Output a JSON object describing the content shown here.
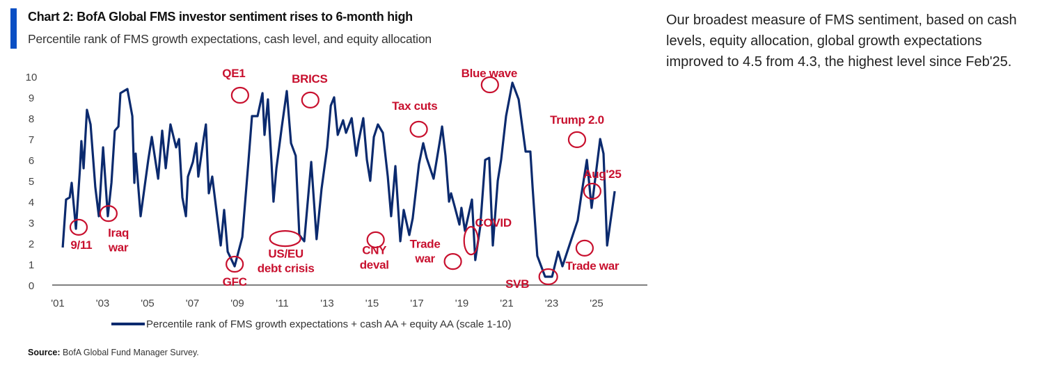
{
  "header": {
    "title": "Chart 2: BofA Global FMS investor sentiment rises to 6-month high",
    "subtitle": "Percentile rank of FMS growth expectations, cash level, and equity allocation"
  },
  "commentary": "Our broadest measure of FMS sentiment, based on cash levels, equity allocation, global growth expectations improved to 4.5 from 4.3, the highest level since Feb'25.",
  "source": {
    "label": "Source:",
    "text": "BofA Global Fund Manager Survey."
  },
  "colors": {
    "accent_bar": "#0a4fc4",
    "series": "#0b2a6e",
    "annotation": "#c8102e"
  },
  "chart_data": {
    "type": "line",
    "title": "Chart 2: BofA Global FMS investor sentiment rises to 6-month high",
    "xlabel": "",
    "ylabel": "",
    "xlim": [
      2000.75,
      2027.3
    ],
    "ylim": [
      0,
      10
    ],
    "yticks": [
      0,
      1,
      2,
      3,
      4,
      5,
      6,
      7,
      8,
      9,
      10
    ],
    "xticks": [
      {
        "value": 2001,
        "label": "'01"
      },
      {
        "value": 2003,
        "label": "'03"
      },
      {
        "value": 2005,
        "label": "'05"
      },
      {
        "value": 2007,
        "label": "'07"
      },
      {
        "value": 2009,
        "label": "'09"
      },
      {
        "value": 2011,
        "label": "'11"
      },
      {
        "value": 2013,
        "label": "'13"
      },
      {
        "value": 2015,
        "label": "'15"
      },
      {
        "value": 2017,
        "label": "'17"
      },
      {
        "value": 2019,
        "label": "'19"
      },
      {
        "value": 2021,
        "label": "'21"
      },
      {
        "value": 2023,
        "label": "'23"
      },
      {
        "value": 2025,
        "label": "'25"
      }
    ],
    "legend": {
      "position": "bottom",
      "label": "Percentile rank of FMS growth expectations + cash AA + equity AA (scale 1-10)"
    },
    "series": [
      {
        "name": "Percentile rank of FMS growth expectations + cash AA + equity AA (scale 1-10)",
        "x": [
          2001.22,
          2001.37,
          2001.53,
          2001.62,
          2001.81,
          2001.99,
          2002.05,
          2002.15,
          2002.3,
          2002.46,
          2002.67,
          2002.83,
          2003.02,
          2003.23,
          2003.39,
          2003.54,
          2003.7,
          2003.79,
          2004.1,
          2004.32,
          2004.41,
          2004.47,
          2004.69,
          2004.88,
          2005.03,
          2005.19,
          2005.47,
          2005.65,
          2005.81,
          2006.02,
          2006.27,
          2006.4,
          2006.55,
          2006.71,
          2006.8,
          2007.02,
          2007.17,
          2007.26,
          2007.51,
          2007.6,
          2007.73,
          2007.88,
          2008.26,
          2008.41,
          2008.57,
          2008.88,
          2009.22,
          2009.5,
          2009.65,
          2009.9,
          2010.12,
          2010.21,
          2010.36,
          2010.52,
          2010.61,
          2010.74,
          2010.98,
          2011.2,
          2011.39,
          2011.6,
          2011.76,
          2011.98,
          2012.29,
          2012.53,
          2012.75,
          2013.0,
          2013.16,
          2013.31,
          2013.47,
          2013.71,
          2013.84,
          2014.09,
          2014.3,
          2014.4,
          2014.61,
          2014.77,
          2014.92,
          2015.08,
          2015.26,
          2015.48,
          2015.7,
          2015.85,
          2016.04,
          2016.26,
          2016.41,
          2016.66,
          2016.81,
          2017.09,
          2017.28,
          2017.43,
          2017.74,
          2018.02,
          2018.12,
          2018.27,
          2018.43,
          2018.52,
          2018.67,
          2018.89,
          2018.98,
          2019.14,
          2019.45,
          2019.6,
          2019.82,
          2020.04,
          2020.22,
          2020.38,
          2020.6,
          2020.75,
          2020.97,
          2021.25,
          2021.53,
          2021.84,
          2022.05,
          2022.15,
          2022.36,
          2022.71,
          2023.02,
          2023.29,
          2023.48,
          2023.85,
          2024.16,
          2024.32,
          2024.57,
          2024.78,
          2025.0,
          2025.16,
          2025.31,
          2025.47,
          2025.81
        ],
        "values": [
          1.8,
          4.1,
          4.2,
          4.9,
          2.7,
          5.6,
          6.9,
          5.6,
          8.4,
          7.7,
          4.7,
          3.3,
          6.6,
          3.3,
          4.9,
          7.4,
          7.6,
          9.2,
          9.4,
          8.1,
          4.9,
          6.3,
          3.3,
          4.8,
          6.0,
          7.1,
          5.1,
          7.4,
          5.6,
          7.7,
          6.6,
          7.0,
          4.2,
          3.3,
          5.2,
          5.9,
          6.8,
          5.2,
          7.1,
          7.7,
          4.4,
          5.2,
          1.9,
          3.6,
          1.6,
          0.9,
          2.3,
          6.0,
          8.1,
          8.1,
          9.2,
          7.2,
          8.9,
          5.9,
          4.0,
          5.6,
          7.6,
          9.3,
          6.8,
          6.2,
          2.4,
          2.1,
          5.9,
          2.2,
          4.6,
          6.6,
          8.6,
          9.0,
          7.2,
          7.9,
          7.3,
          8.0,
          6.2,
          6.9,
          8.0,
          6.0,
          5.0,
          7.1,
          7.7,
          7.3,
          5.2,
          3.3,
          5.7,
          2.1,
          3.6,
          2.4,
          3.2,
          5.8,
          6.8,
          6.1,
          5.1,
          6.9,
          7.6,
          6.2,
          4.0,
          4.4,
          3.8,
          2.9,
          3.7,
          2.6,
          4.1,
          1.2,
          2.8,
          6.0,
          6.1,
          1.9,
          5.0,
          6.0,
          8.1,
          9.7,
          8.9,
          6.4,
          6.4,
          4.7,
          1.4,
          0.4,
          0.4,
          1.6,
          0.9,
          2.1,
          3.1,
          4.3,
          6.0,
          3.7,
          5.6,
          7.0,
          6.3,
          1.9,
          4.5
        ]
      }
    ],
    "annotations": [
      {
        "text": [
          "9/11"
        ],
        "point": [
          2001.93,
          2.77
        ],
        "label_at": [
          2002.05,
          1.93
        ],
        "shape": "circle"
      },
      {
        "text": [
          "Iraq",
          "war"
        ],
        "point": [
          2003.26,
          3.43
        ],
        "label_at": [
          2003.7,
          2.17
        ],
        "shape": "circle"
      },
      {
        "text": [
          "GFC"
        ],
        "point": [
          2008.88,
          1.0
        ],
        "label_at": [
          2008.88,
          0.17
        ],
        "shape": "circle"
      },
      {
        "text": [
          "QE1"
        ],
        "point": [
          2009.12,
          9.1
        ],
        "label_at": [
          2008.84,
          10.17
        ],
        "shape": "circle"
      },
      {
        "text": [
          "US/EU",
          "debt crisis"
        ],
        "point": [
          2011.13,
          2.23
        ],
        "label_at": [
          2011.16,
          1.17
        ],
        "shape": "wide"
      },
      {
        "text": [
          "BRICS"
        ],
        "point": [
          2012.25,
          8.87
        ],
        "label_at": [
          2012.22,
          9.9
        ],
        "shape": "circle"
      },
      {
        "text": [
          "CNY",
          "deval"
        ],
        "point": [
          2015.16,
          2.17
        ],
        "label_at": [
          2015.1,
          1.33
        ],
        "shape": "circle"
      },
      {
        "text": [
          "Tax cuts"
        ],
        "point": [
          2017.08,
          7.47
        ],
        "label_at": [
          2016.9,
          8.6
        ],
        "shape": "circle"
      },
      {
        "text": [
          "Trade",
          "war"
        ],
        "point": [
          2018.6,
          1.13
        ],
        "label_at": [
          2017.36,
          1.63
        ],
        "shape": "circle"
      },
      {
        "text": [
          "COVID"
        ],
        "point": [
          2019.41,
          2.13
        ],
        "label_at": [
          2020.4,
          3.0
        ],
        "shape": "tall"
      },
      {
        "text": [
          "Blue wave"
        ],
        "point": [
          2020.25,
          9.6
        ],
        "label_at": [
          2020.22,
          10.17
        ],
        "shape": "circle"
      },
      {
        "text": [
          "SVB"
        ],
        "point": [
          2022.85,
          0.4
        ],
        "label_at": [
          2021.47,
          0.07
        ],
        "shape": "wide"
      },
      {
        "text": [
          "Trump 2.0"
        ],
        "point": [
          2024.13,
          6.97
        ],
        "label_at": [
          2024.13,
          7.93
        ],
        "shape": "circle"
      },
      {
        "text": [
          "Aug'25"
        ],
        "point": [
          2024.81,
          4.5
        ],
        "label_at": [
          2025.26,
          5.33
        ],
        "shape": "circle"
      },
      {
        "text": [
          "Trade war"
        ],
        "point": [
          2024.47,
          1.77
        ],
        "label_at": [
          2024.81,
          0.93
        ],
        "shape": "circle"
      }
    ]
  }
}
